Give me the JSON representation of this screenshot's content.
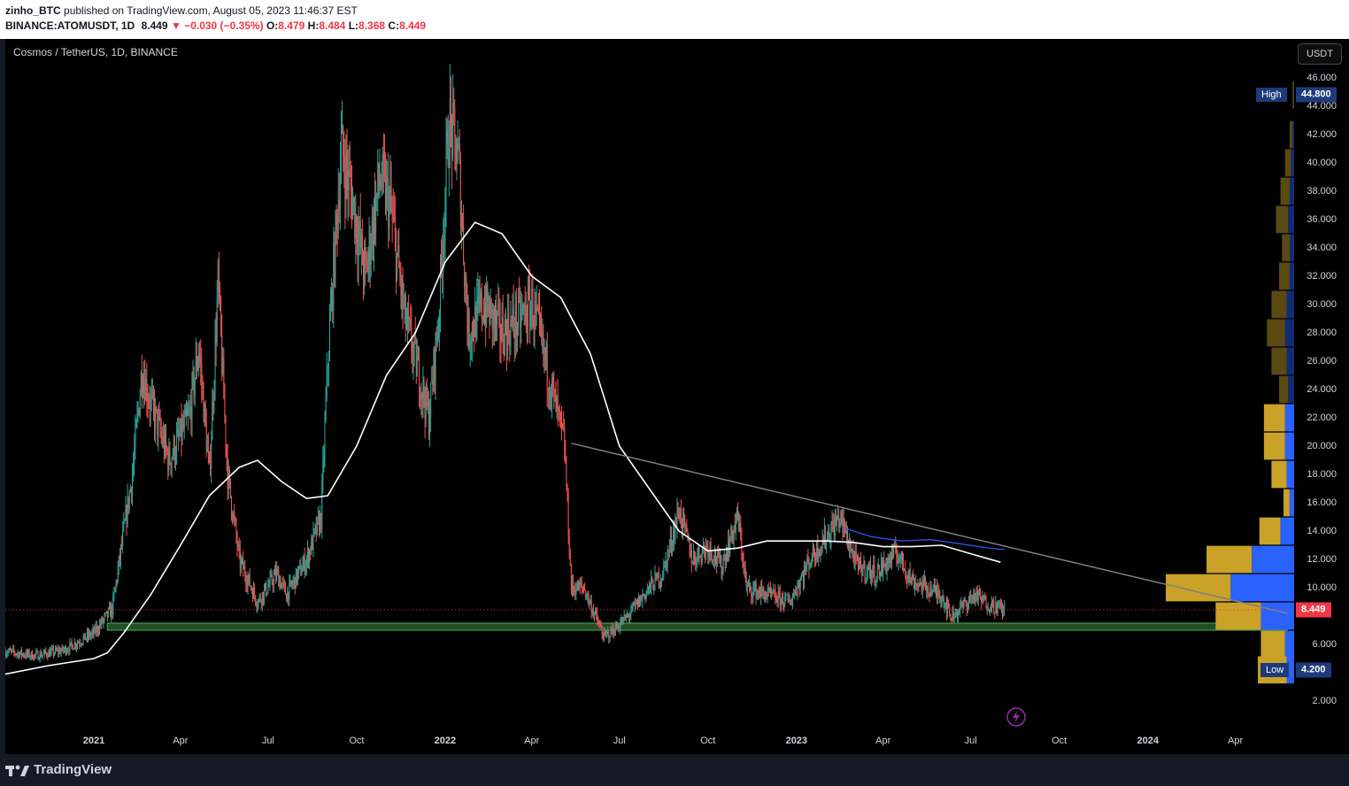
{
  "header": {
    "publisher": "zinho_BTC",
    "published_text": "published on TradingView.com, August 05, 2023 11:46:37 EST",
    "symbol_full": "BINANCE:ATOMUSDT, 1D",
    "last": "8.449",
    "change": "−0.030 (−0.35%)",
    "open_label": "O:",
    "open": "8.479",
    "high_label": "H:",
    "high": "8.484",
    "low_label": "L:",
    "low": "8.368",
    "close_label": "C:",
    "close": "8.449"
  },
  "chart_title": "Cosmos / TetherUS, 1D, BINANCE",
  "currency_button": "USDT",
  "footer": {
    "brand": "TradingView"
  },
  "colors": {
    "up": "#26a69a",
    "down": "#ef5350",
    "ma": "#ffffff",
    "trendline": "#808080",
    "support": "#4caf50",
    "vp_up": "#c9a227",
    "vp_down": "#2962ff",
    "price_tag": "#f23645",
    "range_tag": "#1e3a7b"
  },
  "chart_data": {
    "type": "candlestick",
    "symbol": "ATOMUSDT",
    "timeframe": "1D",
    "y_ticks": [
      "2.000",
      "6.000",
      "10.000",
      "12.000",
      "14.000",
      "16.000",
      "18.000",
      "20.000",
      "22.000",
      "24.000",
      "26.000",
      "28.000",
      "30.000",
      "32.000",
      "34.000",
      "36.000",
      "38.000",
      "40.000",
      "42.000",
      "44.000",
      "46.000"
    ],
    "x_ticks": [
      "2021",
      "Apr",
      "Jul",
      "Oct",
      "2022",
      "Apr",
      "Jul",
      "Oct",
      "2023",
      "Apr",
      "Jul",
      "Oct",
      "2024",
      "Apr"
    ],
    "ylim": [
      0,
      47.5
    ],
    "xlim": [
      "2020-10-01",
      "2024-06-01"
    ],
    "price_labels": {
      "high_label": "High",
      "high": "44.800",
      "low_label": "Low",
      "low": "4.200",
      "last": "8.449",
      "last_value": 8.449
    },
    "price_path": [
      [
        "2020-10-01",
        5.5
      ],
      [
        "2020-11-01",
        5.2
      ],
      [
        "2020-12-01",
        5.6
      ],
      [
        "2021-01-01",
        6.8
      ],
      [
        "2021-01-20",
        8.5
      ],
      [
        "2021-02-10",
        18
      ],
      [
        "2021-02-20",
        25.5
      ],
      [
        "2021-03-01",
        23
      ],
      [
        "2021-03-20",
        19
      ],
      [
        "2021-04-10",
        22
      ],
      [
        "2021-04-20",
        27
      ],
      [
        "2021-05-01",
        18
      ],
      [
        "2021-05-10",
        31.5
      ],
      [
        "2021-05-20",
        18
      ],
      [
        "2021-06-01",
        12
      ],
      [
        "2021-06-20",
        9
      ],
      [
        "2021-07-10",
        11
      ],
      [
        "2021-07-20",
        9.5
      ],
      [
        "2021-08-10",
        12
      ],
      [
        "2021-08-25",
        15
      ],
      [
        "2021-09-01",
        26
      ],
      [
        "2021-09-15",
        41
      ],
      [
        "2021-09-25",
        38
      ],
      [
        "2021-10-10",
        32
      ],
      [
        "2021-10-25",
        39
      ],
      [
        "2021-11-05",
        37
      ],
      [
        "2021-11-20",
        29
      ],
      [
        "2021-12-05",
        25
      ],
      [
        "2021-12-15",
        22
      ],
      [
        "2021-12-25",
        29
      ],
      [
        "2022-01-05",
        43
      ],
      [
        "2022-01-15",
        40
      ],
      [
        "2022-01-25",
        28
      ],
      [
        "2022-02-10",
        30
      ],
      [
        "2022-03-01",
        28
      ],
      [
        "2022-03-20",
        29
      ],
      [
        "2022-04-01",
        30
      ],
      [
        "2022-04-15",
        26
      ],
      [
        "2022-05-05",
        20
      ],
      [
        "2022-05-12",
        10
      ],
      [
        "2022-05-25",
        10
      ],
      [
        "2022-06-15",
        6.5
      ],
      [
        "2022-06-25",
        7
      ],
      [
        "2022-07-10",
        8
      ],
      [
        "2022-08-01",
        10
      ],
      [
        "2022-08-15",
        11
      ],
      [
        "2022-09-01",
        15.5
      ],
      [
        "2022-09-15",
        12
      ],
      [
        "2022-10-01",
        13
      ],
      [
        "2022-10-15",
        11.5
      ],
      [
        "2022-11-01",
        15
      ],
      [
        "2022-11-10",
        10
      ],
      [
        "2022-12-01",
        9.5
      ],
      [
        "2022-12-25",
        9
      ],
      [
        "2023-01-15",
        12
      ],
      [
        "2023-02-15",
        15
      ],
      [
        "2023-03-05",
        11.5
      ],
      [
        "2023-03-25",
        11
      ],
      [
        "2023-04-15",
        12.5
      ],
      [
        "2023-05-01",
        10.5
      ],
      [
        "2023-06-01",
        9.5
      ],
      [
        "2023-06-10",
        8
      ],
      [
        "2023-06-20",
        8.5
      ],
      [
        "2023-07-05",
        9.5
      ],
      [
        "2023-07-15",
        9
      ],
      [
        "2023-08-05",
        8.449
      ]
    ],
    "moving_average": {
      "color": "#ffffff",
      "points": [
        [
          "2020-10-01",
          3.9
        ],
        [
          "2020-11-15",
          4.5
        ],
        [
          "2021-01-01",
          5.0
        ],
        [
          "2021-01-15",
          5.4
        ],
        [
          "2021-02-01",
          6.8
        ],
        [
          "2021-03-01",
          9.5
        ],
        [
          "2021-04-01",
          13
        ],
        [
          "2021-05-01",
          16.5
        ],
        [
          "2021-06-01",
          18.5
        ],
        [
          "2021-06-20",
          19
        ],
        [
          "2021-07-15",
          17.5
        ],
        [
          "2021-08-10",
          16.3
        ],
        [
          "2021-09-01",
          16.5
        ],
        [
          "2021-10-01",
          20
        ],
        [
          "2021-11-01",
          25
        ],
        [
          "2021-12-01",
          28
        ],
        [
          "2022-01-01",
          33
        ],
        [
          "2022-02-01",
          35.8
        ],
        [
          "2022-03-01",
          35
        ],
        [
          "2022-04-01",
          32
        ],
        [
          "2022-05-01",
          30.5
        ],
        [
          "2022-06-01",
          26.5
        ],
        [
          "2022-07-01",
          20
        ],
        [
          "2022-08-01",
          17
        ],
        [
          "2022-09-01",
          14
        ],
        [
          "2022-10-01",
          12.6
        ],
        [
          "2022-11-01",
          12.8
        ],
        [
          "2022-12-01",
          13.3
        ],
        [
          "2023-01-01",
          13.3
        ],
        [
          "2023-02-01",
          13.3
        ],
        [
          "2023-03-01",
          13.2
        ],
        [
          "2023-04-01",
          12.9
        ],
        [
          "2023-05-01",
          12.9
        ],
        [
          "2023-06-01",
          13
        ],
        [
          "2023-07-01",
          12.4
        ],
        [
          "2023-08-01",
          11.8
        ]
      ]
    },
    "moving_average_2": {
      "color": "#2962ff",
      "points": [
        [
          "2023-02-20",
          14.2
        ],
        [
          "2023-03-20",
          13.6
        ],
        [
          "2023-04-20",
          13.3
        ],
        [
          "2023-05-20",
          13.4
        ],
        [
          "2023-06-20",
          13.1
        ],
        [
          "2023-07-20",
          12.8
        ],
        [
          "2023-08-05",
          12.7
        ]
      ]
    },
    "trendline": {
      "from": [
        "2022-05-12",
        20.2
      ],
      "to": [
        "2024-05-25",
        8.2
      ]
    },
    "support_zone": {
      "from": "2021-01-15",
      "to": "2024-05-25",
      "low": 7.0,
      "high": 7.5
    },
    "volume_profile": [
      {
        "price": 44.8,
        "up": 1,
        "down": 0
      },
      {
        "price": 42,
        "up": 2,
        "down": 1
      },
      {
        "price": 40,
        "up": 4,
        "down": 2
      },
      {
        "price": 38,
        "up": 6,
        "down": 3
      },
      {
        "price": 36,
        "up": 8,
        "down": 4
      },
      {
        "price": 34,
        "up": 5,
        "down": 3
      },
      {
        "price": 32,
        "up": 7,
        "down": 3
      },
      {
        "price": 30,
        "up": 10,
        "down": 5
      },
      {
        "price": 28,
        "up": 12,
        "down": 6
      },
      {
        "price": 26,
        "up": 10,
        "down": 5
      },
      {
        "price": 24,
        "up": 6,
        "down": 4
      },
      {
        "price": 22,
        "up": 14,
        "down": 6
      },
      {
        "price": 20,
        "up": 14,
        "down": 6
      },
      {
        "price": 18,
        "up": 10,
        "down": 5
      },
      {
        "price": 16,
        "up": 4,
        "down": 3
      },
      {
        "price": 14,
        "up": 14,
        "down": 9
      },
      {
        "price": 12,
        "up": 30,
        "down": 28
      },
      {
        "price": 10,
        "up": 43,
        "down": 42
      },
      {
        "price": 8,
        "up": 30,
        "down": 22
      },
      {
        "price": 6,
        "up": 16,
        "down": 6
      },
      {
        "price": 4.2,
        "up": 19,
        "down": 5
      }
    ]
  }
}
